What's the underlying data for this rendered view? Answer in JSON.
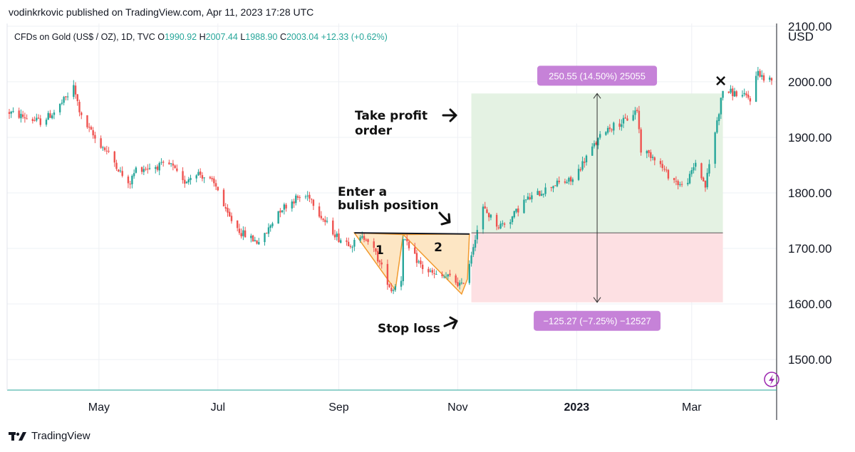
{
  "header": {
    "published": "vodinkrkovic published on TradingView.com, Apr 11, 2023 17:28 UTC"
  },
  "legend": {
    "symbol": "CFDs on Gold (US$ / OZ), 1D, TVC",
    "open_label": "O",
    "open": "1990.92",
    "high_label": "H",
    "high": "2007.44",
    "low_label": "L",
    "low": "1988.90",
    "close_label": "C",
    "close": "2003.04",
    "change": "+12.33 (+0.62%)"
  },
  "footer": {
    "brand": "TradingView"
  },
  "colors": {
    "up": "#26a69a",
    "down": "#ef5350",
    "profit_zone": "#e4f2e3",
    "loss_zone": "#fde0e3",
    "label_box": "#c682d8",
    "pattern_fill": "#fde6c4",
    "pattern_line": "#f29a2e"
  },
  "chart_data": {
    "type": "candlestick",
    "symbol": "CFDs on Gold (US$ / OZ)",
    "timeframe": "1D",
    "currency": "USD",
    "y_unit": "USD",
    "ylim": [
      1445,
      2105
    ],
    "yticks": [
      1500,
      1600,
      1700,
      1800,
      1900,
      2000,
      2100
    ],
    "ytick_labels": [
      "1500.00",
      "1600.00",
      "1700.00",
      "1800.00",
      "1900.00",
      "2000.00",
      "2100.00"
    ],
    "x_range": [
      "2022-03-16",
      "2023-04-11"
    ],
    "xticks": [
      {
        "date": "2022-05-01",
        "label": "May",
        "bold": false
      },
      {
        "date": "2022-07-01",
        "label": "Jul",
        "bold": false
      },
      {
        "date": "2022-09-01",
        "label": "Sep",
        "bold": false
      },
      {
        "date": "2022-11-01",
        "label": "Nov",
        "bold": false
      },
      {
        "date": "2023-01-01",
        "label": "2023",
        "bold": true
      },
      {
        "date": "2023-03-01",
        "label": "Mar",
        "bold": false
      }
    ],
    "price_path": [
      [
        "2022-03-16",
        1945
      ],
      [
        "2022-03-25",
        1935
      ],
      [
        "2022-04-01",
        1928
      ],
      [
        "2022-04-08",
        1945
      ],
      [
        "2022-04-15",
        1975
      ],
      [
        "2022-04-18",
        1990
      ],
      [
        "2022-04-22",
        1935
      ],
      [
        "2022-04-29",
        1898
      ],
      [
        "2022-05-05",
        1875
      ],
      [
        "2022-05-10",
        1850
      ],
      [
        "2022-05-16",
        1812
      ],
      [
        "2022-05-20",
        1843
      ],
      [
        "2022-05-31",
        1848
      ],
      [
        "2022-06-07",
        1850
      ],
      [
        "2022-06-13",
        1818
      ],
      [
        "2022-06-20",
        1838
      ],
      [
        "2022-06-27",
        1822
      ],
      [
        "2022-07-01",
        1808
      ],
      [
        "2022-07-05",
        1765
      ],
      [
        "2022-07-13",
        1728
      ],
      [
        "2022-07-21",
        1712
      ],
      [
        "2022-07-25",
        1722
      ],
      [
        "2022-08-01",
        1768
      ],
      [
        "2022-08-10",
        1790
      ],
      [
        "2022-08-17",
        1795
      ],
      [
        "2022-08-24",
        1752
      ],
      [
        "2022-09-01",
        1718
      ],
      [
        "2022-09-08",
        1708
      ],
      [
        "2022-09-15",
        1722
      ],
      [
        "2022-09-20",
        1690
      ],
      [
        "2022-09-28",
        1625
      ],
      [
        "2022-10-03",
        1645
      ],
      [
        "2022-10-04",
        1722
      ],
      [
        "2022-10-07",
        1698
      ],
      [
        "2022-10-14",
        1665
      ],
      [
        "2022-10-21",
        1650
      ],
      [
        "2022-10-28",
        1648
      ],
      [
        "2022-11-03",
        1632
      ],
      [
        "2022-11-07",
        1675
      ],
      [
        "2022-11-10",
        1722
      ],
      [
        "2022-11-14",
        1772
      ],
      [
        "2022-11-22",
        1740
      ],
      [
        "2022-11-28",
        1752
      ],
      [
        "2022-12-05",
        1785
      ],
      [
        "2022-12-13",
        1800
      ],
      [
        "2022-12-20",
        1815
      ],
      [
        "2022-12-30",
        1823
      ],
      [
        "2023-01-06",
        1865
      ],
      [
        "2023-01-16",
        1915
      ],
      [
        "2023-01-26",
        1930
      ],
      [
        "2023-02-01",
        1950
      ],
      [
        "2023-02-03",
        1877
      ],
      [
        "2023-02-10",
        1865
      ],
      [
        "2023-02-16",
        1835
      ],
      [
        "2023-02-24",
        1812
      ],
      [
        "2023-02-28",
        1828
      ],
      [
        "2023-03-03",
        1855
      ],
      [
        "2023-03-08",
        1812
      ],
      [
        "2023-03-13",
        1910
      ],
      [
        "2023-03-17",
        1985
      ],
      [
        "2023-03-24",
        1978
      ],
      [
        "2023-03-31",
        1970
      ],
      [
        "2023-04-04",
        2020
      ],
      [
        "2023-04-07",
        2005
      ],
      [
        "2023-04-11",
        2003
      ]
    ],
    "last_bar": {
      "open": 1990.92,
      "high": 2007.44,
      "low": 1988.9,
      "close": 2003.04,
      "change": 12.33,
      "change_pct": 0.62
    },
    "long_position": {
      "start": "2022-11-08",
      "end": "2023-03-17",
      "entry": 1728,
      "take_profit": 1979,
      "stop_loss": 1603,
      "profit_label": "250.55 (14.50%) 25055",
      "loss_label": "−125.27 (−7.25%) −12527"
    },
    "pattern": {
      "neckline": [
        [
          "2022-09-09",
          1728
        ],
        [
          "2022-11-07",
          1726
        ]
      ],
      "bottom_1": [
        [
          "2022-09-09",
          1728
        ],
        [
          "2022-09-30",
          1625
        ],
        [
          "2022-10-04",
          1725
        ]
      ],
      "bottom_2": [
        [
          "2022-10-04",
          1725
        ],
        [
          "2022-11-03",
          1618
        ],
        [
          "2022-11-06",
          1645
        ],
        [
          "2022-11-07",
          1726
        ]
      ],
      "labels": [
        "1",
        "2"
      ]
    },
    "annotations": [
      {
        "text": "Take profit",
        "text2": "order"
      },
      {
        "text": "Enter a",
        "text2": "bulish position"
      },
      {
        "text": "Stop loss",
        "text2": ""
      }
    ],
    "marker": {
      "date": "2023-03-17",
      "price": 2003,
      "symbol": "×"
    }
  }
}
